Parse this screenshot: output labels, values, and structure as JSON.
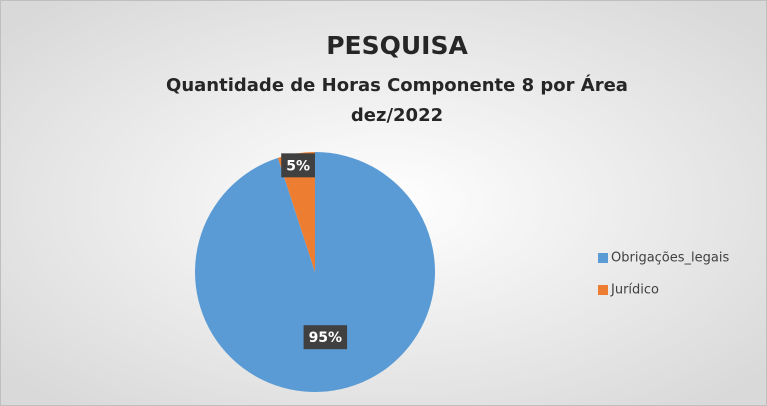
{
  "chart_data": {
    "type": "pie",
    "title": "PESQUISA",
    "subtitle": [
      "Quantidade de Horas Componente 8 por Área",
      "dez/2022"
    ],
    "categories": [
      "Obrigações_legais",
      "Jurídico"
    ],
    "values": [
      95,
      5
    ],
    "value_labels": [
      "95%",
      "5%"
    ],
    "colors": [
      "#5b9bd5",
      "#ed7d31"
    ],
    "legend": "right"
  }
}
